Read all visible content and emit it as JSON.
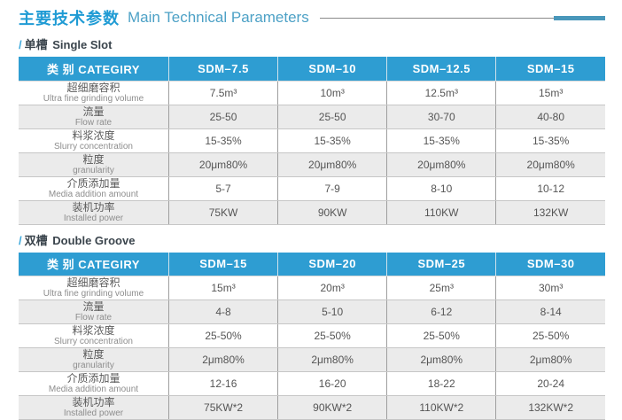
{
  "page": {
    "title_zh": "主要技术参数",
    "title_en": "Main Technical Parameters"
  },
  "colors": {
    "accent_blue": "#2e9dd2",
    "title_blue": "#1f9bd4",
    "rule_accent": "#4997ba",
    "row_alt_grey": "#ebebeb"
  },
  "sections": [
    {
      "slash": "/",
      "label_zh": "单槽",
      "label_en": "Single Slot",
      "table": {
        "category_header": "类 别 CATEGIRY",
        "columns": [
          "SDM–7.5",
          "SDM–10",
          "SDM–12.5",
          "SDM–15"
        ],
        "rows": [
          {
            "zh": "超细磨容积",
            "en": "Ultra fine grinding volume",
            "values": [
              "7.5m³",
              "10m³",
              "12.5m³",
              "15m³"
            ]
          },
          {
            "zh": "流量",
            "en": "Flow rate",
            "values": [
              "25-50",
              "25-50",
              "30-70",
              "40-80"
            ]
          },
          {
            "zh": "料浆浓度",
            "en": "Slurry concentration",
            "values": [
              "15-35%",
              "15-35%",
              "15-35%",
              "15-35%"
            ]
          },
          {
            "zh": "粒度",
            "en": "granularity",
            "values": [
              "20μm80%",
              "20μm80%",
              "20μm80%",
              "20μm80%"
            ]
          },
          {
            "zh": "介质添加量",
            "en": "Media addition amount",
            "values": [
              "5-7",
              "7-9",
              "8-10",
              "10-12"
            ]
          },
          {
            "zh": "装机功率",
            "en": "Installed power",
            "values": [
              "75KW",
              "90KW",
              "110KW",
              "132KW"
            ]
          }
        ]
      }
    },
    {
      "slash": "/",
      "label_zh": "双槽",
      "label_en": "Double Groove",
      "table": {
        "category_header": "类 别 CATEGIRY",
        "columns": [
          "SDM–15",
          "SDM–20",
          "SDM–25",
          "SDM–30"
        ],
        "rows": [
          {
            "zh": "超细磨容积",
            "en": "Ultra fine grinding volume",
            "values": [
              "15m³",
              "20m³",
              "25m³",
              "30m³"
            ]
          },
          {
            "zh": "流量",
            "en": "Flow rate",
            "values": [
              "4-8",
              "5-10",
              "6-12",
              "8-14"
            ]
          },
          {
            "zh": "料浆浓度",
            "en": "Slurry concentration",
            "values": [
              "25-50%",
              "25-50%",
              "25-50%",
              "25-50%"
            ]
          },
          {
            "zh": "粒度",
            "en": "granularity",
            "values": [
              "2μm80%",
              "2μm80%",
              "2μm80%",
              "2μm80%"
            ]
          },
          {
            "zh": "介质添加量",
            "en": "Media addition amount",
            "values": [
              "12-16",
              "16-20",
              "18-22",
              "20-24"
            ]
          },
          {
            "zh": "装机功率",
            "en": "Installed power",
            "values": [
              "75KW*2",
              "90KW*2",
              "110KW*2",
              "132KW*2"
            ]
          }
        ]
      }
    }
  ]
}
